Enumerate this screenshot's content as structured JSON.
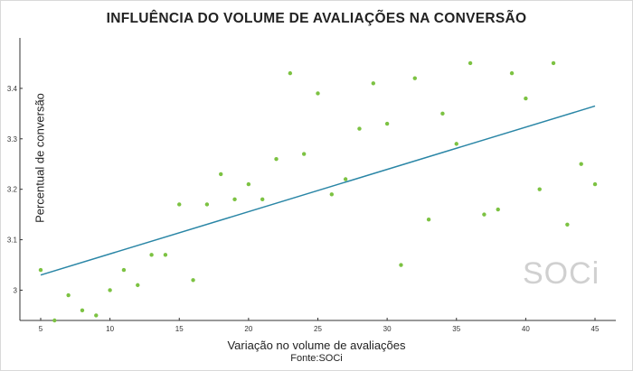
{
  "chart_data": {
    "type": "scatter",
    "title": "INFLUÊNCIA DO VOLUME DE AVALIAÇÕES NA CONVERSÃO",
    "xlabel": "Variação no volume de avaliações",
    "ylabel": "Percentual de conversão",
    "source": "Fonte:SOCi",
    "xlim": [
      3.5,
      46.5
    ],
    "ylim": [
      2.94,
      3.5
    ],
    "xticks": [
      5,
      10,
      15,
      20,
      25,
      30,
      35,
      40,
      45
    ],
    "yticks": [
      3,
      3.1,
      3.2,
      3.3,
      3.4
    ],
    "grid": false,
    "points": [
      {
        "x": 5,
        "y": 3.04
      },
      {
        "x": 6,
        "y": 2.94
      },
      {
        "x": 7,
        "y": 2.99
      },
      {
        "x": 8,
        "y": 2.96
      },
      {
        "x": 9,
        "y": 2.95
      },
      {
        "x": 10,
        "y": 3.0
      },
      {
        "x": 11,
        "y": 3.04
      },
      {
        "x": 12,
        "y": 3.01
      },
      {
        "x": 13,
        "y": 3.07
      },
      {
        "x": 14,
        "y": 3.07
      },
      {
        "x": 15,
        "y": 3.17
      },
      {
        "x": 16,
        "y": 3.02
      },
      {
        "x": 17,
        "y": 3.17
      },
      {
        "x": 18,
        "y": 3.23
      },
      {
        "x": 19,
        "y": 3.18
      },
      {
        "x": 20,
        "y": 3.21
      },
      {
        "x": 21,
        "y": 3.18
      },
      {
        "x": 22,
        "y": 3.26
      },
      {
        "x": 23,
        "y": 3.43
      },
      {
        "x": 24,
        "y": 3.27
      },
      {
        "x": 25,
        "y": 3.39
      },
      {
        "x": 26,
        "y": 3.19
      },
      {
        "x": 27,
        "y": 3.22
      },
      {
        "x": 28,
        "y": 3.32
      },
      {
        "x": 29,
        "y": 3.41
      },
      {
        "x": 30,
        "y": 3.33
      },
      {
        "x": 31,
        "y": 3.05
      },
      {
        "x": 32,
        "y": 3.42
      },
      {
        "x": 33,
        "y": 3.14
      },
      {
        "x": 34,
        "y": 3.35
      },
      {
        "x": 35,
        "y": 3.29
      },
      {
        "x": 36,
        "y": 3.45
      },
      {
        "x": 37,
        "y": 3.15
      },
      {
        "x": 38,
        "y": 3.16
      },
      {
        "x": 39,
        "y": 3.43
      },
      {
        "x": 40,
        "y": 3.38
      },
      {
        "x": 41,
        "y": 3.2
      },
      {
        "x": 42,
        "y": 3.45
      },
      {
        "x": 43,
        "y": 3.13
      },
      {
        "x": 44,
        "y": 3.25
      },
      {
        "x": 45,
        "y": 3.21
      }
    ],
    "trendline": {
      "x": [
        5,
        45
      ],
      "y": [
        3.03,
        3.365
      ]
    },
    "colors": {
      "points": "#7cc242",
      "trendline": "#2a86a6",
      "axis": "#333333"
    }
  },
  "logo_text": "SOCi"
}
